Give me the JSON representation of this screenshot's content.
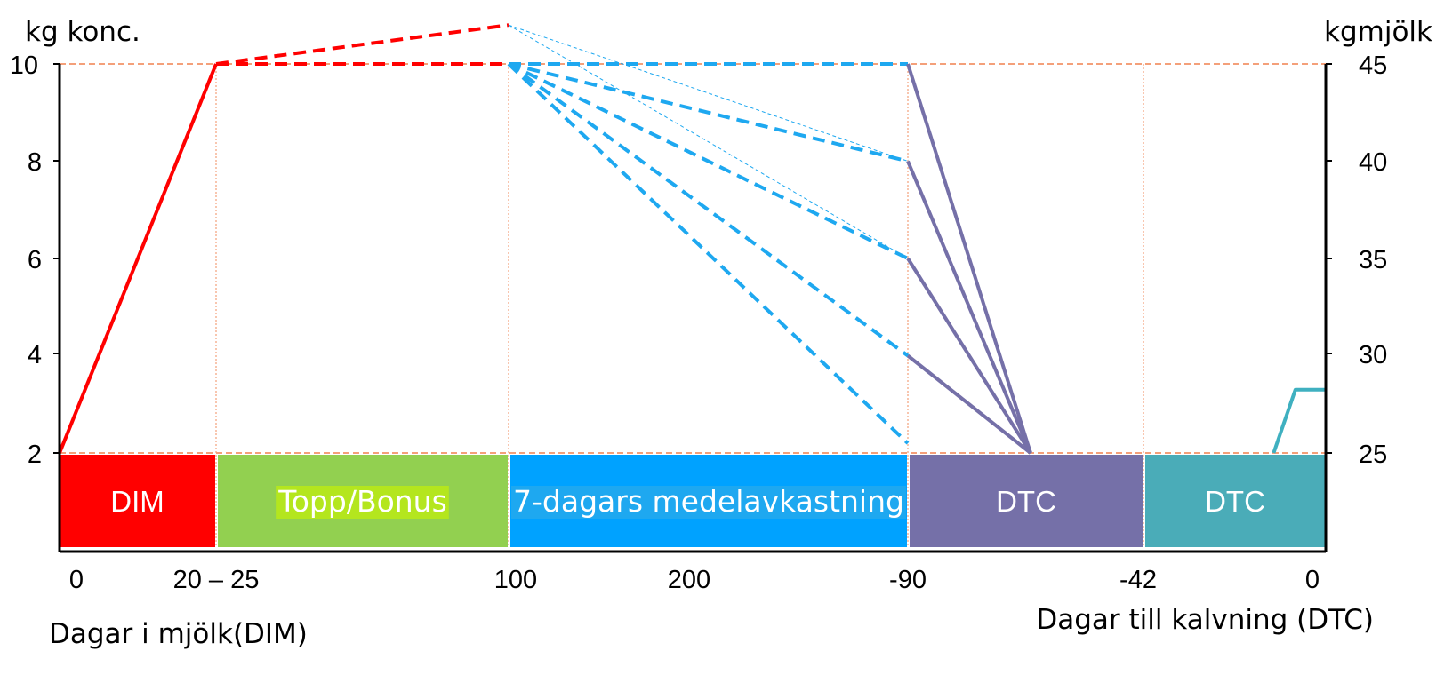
{
  "chart_data": {
    "type": "line",
    "title": "",
    "y_left_label": "kg konc.",
    "y_right_label": "kgmjölk",
    "y_left_ticks": [
      "2",
      "4",
      "6",
      "8",
      "10"
    ],
    "y_right_ticks": [
      "25",
      "30",
      "35",
      "40",
      "45"
    ],
    "x_tick_labels": [
      "0",
      "20 – 25",
      "100",
      "200",
      "-90",
      "-42",
      "0"
    ],
    "x_label_left": "Dagar i mjölk(DIM)",
    "x_label_right": "Dagar till kalvning (DTC)",
    "phases": [
      {
        "label": "DIM",
        "color": "#ff0000",
        "text_color": "#ffffff"
      },
      {
        "label": "Topp/Bonus",
        "color": "#92d050",
        "text_color": "#ffffff",
        "label_bg": "#b4e61e"
      },
      {
        "label": "7-dagars medelavkastning",
        "color": "#00a2ff",
        "text_color": "#ffffff",
        "label_bg": "#1ea8f0"
      },
      {
        "label": "DTC",
        "color": "#7570a8",
        "text_color": "#ffffff"
      },
      {
        "label": "DTC",
        "color": "#4aacb8",
        "text_color": "#ffffff"
      }
    ],
    "series": [
      {
        "color": "#ff0000",
        "style": "solid",
        "points": [
          [
            0,
            2
          ],
          [
            22.5,
            10
          ]
        ]
      },
      {
        "color": "#ff0000",
        "style": "dashed",
        "points": [
          [
            22.5,
            10
          ],
          [
            100,
            10
          ]
        ]
      },
      {
        "color": "#ff0000",
        "style": "dashed",
        "points": [
          [
            22.5,
            10
          ],
          [
            100,
            10.8
          ]
        ]
      },
      {
        "color": "#1ea8f0",
        "style": "dashed",
        "points": [
          [
            100,
            10
          ],
          [
            -90,
            10
          ]
        ]
      },
      {
        "color": "#1ea8f0",
        "style": "dashed",
        "points": [
          [
            100,
            10
          ],
          [
            -90,
            8
          ]
        ]
      },
      {
        "color": "#1ea8f0",
        "style": "dashed",
        "points": [
          [
            100,
            10
          ],
          [
            -90,
            6
          ]
        ]
      },
      {
        "color": "#1ea8f0",
        "style": "dashed",
        "points": [
          [
            100,
            10
          ],
          [
            -90,
            4
          ]
        ]
      },
      {
        "color": "#1ea8f0",
        "style": "dashed",
        "points": [
          [
            100,
            10
          ],
          [
            -90,
            2.2
          ]
        ]
      },
      {
        "color": "#1ea8f0",
        "style": "thin-dashed",
        "points": [
          [
            100,
            10.8
          ],
          [
            -90,
            8
          ]
        ]
      },
      {
        "color": "#1ea8f0",
        "style": "thin-dashed",
        "points": [
          [
            100,
            10.8
          ],
          [
            -90,
            6
          ]
        ]
      },
      {
        "color": "#7570a8",
        "style": "solid",
        "points": [
          [
            -90,
            10
          ],
          [
            -65,
            2
          ]
        ]
      },
      {
        "color": "#7570a8",
        "style": "solid",
        "points": [
          [
            -90,
            8
          ],
          [
            -65,
            2
          ]
        ]
      },
      {
        "color": "#7570a8",
        "style": "solid",
        "points": [
          [
            -90,
            6
          ],
          [
            -65,
            2
          ]
        ]
      },
      {
        "color": "#7570a8",
        "style": "solid",
        "points": [
          [
            -90,
            4
          ],
          [
            -65,
            2
          ]
        ]
      },
      {
        "color": "#3fb0c0",
        "style": "solid",
        "points": [
          [
            -12,
            2
          ],
          [
            -7,
            3.3
          ],
          [
            0,
            3.3
          ]
        ]
      }
    ],
    "reference_lines": [
      {
        "y": 10,
        "color": "#f4a07a",
        "style": "dashed"
      },
      {
        "y": 2,
        "color": "#f4a07a",
        "style": "dashed"
      }
    ],
    "grid": false,
    "legend": "none"
  }
}
